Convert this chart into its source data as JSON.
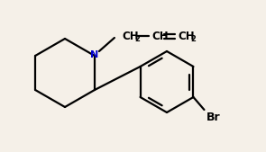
{
  "bg_color": "#f5f0e8",
  "line_color": "#000000",
  "n_color": "#0000cc",
  "line_width": 1.6,
  "figsize": [
    2.95,
    1.69
  ],
  "dpi": 100,
  "xlim": [
    0,
    295
  ],
  "ylim": [
    0,
    169
  ]
}
